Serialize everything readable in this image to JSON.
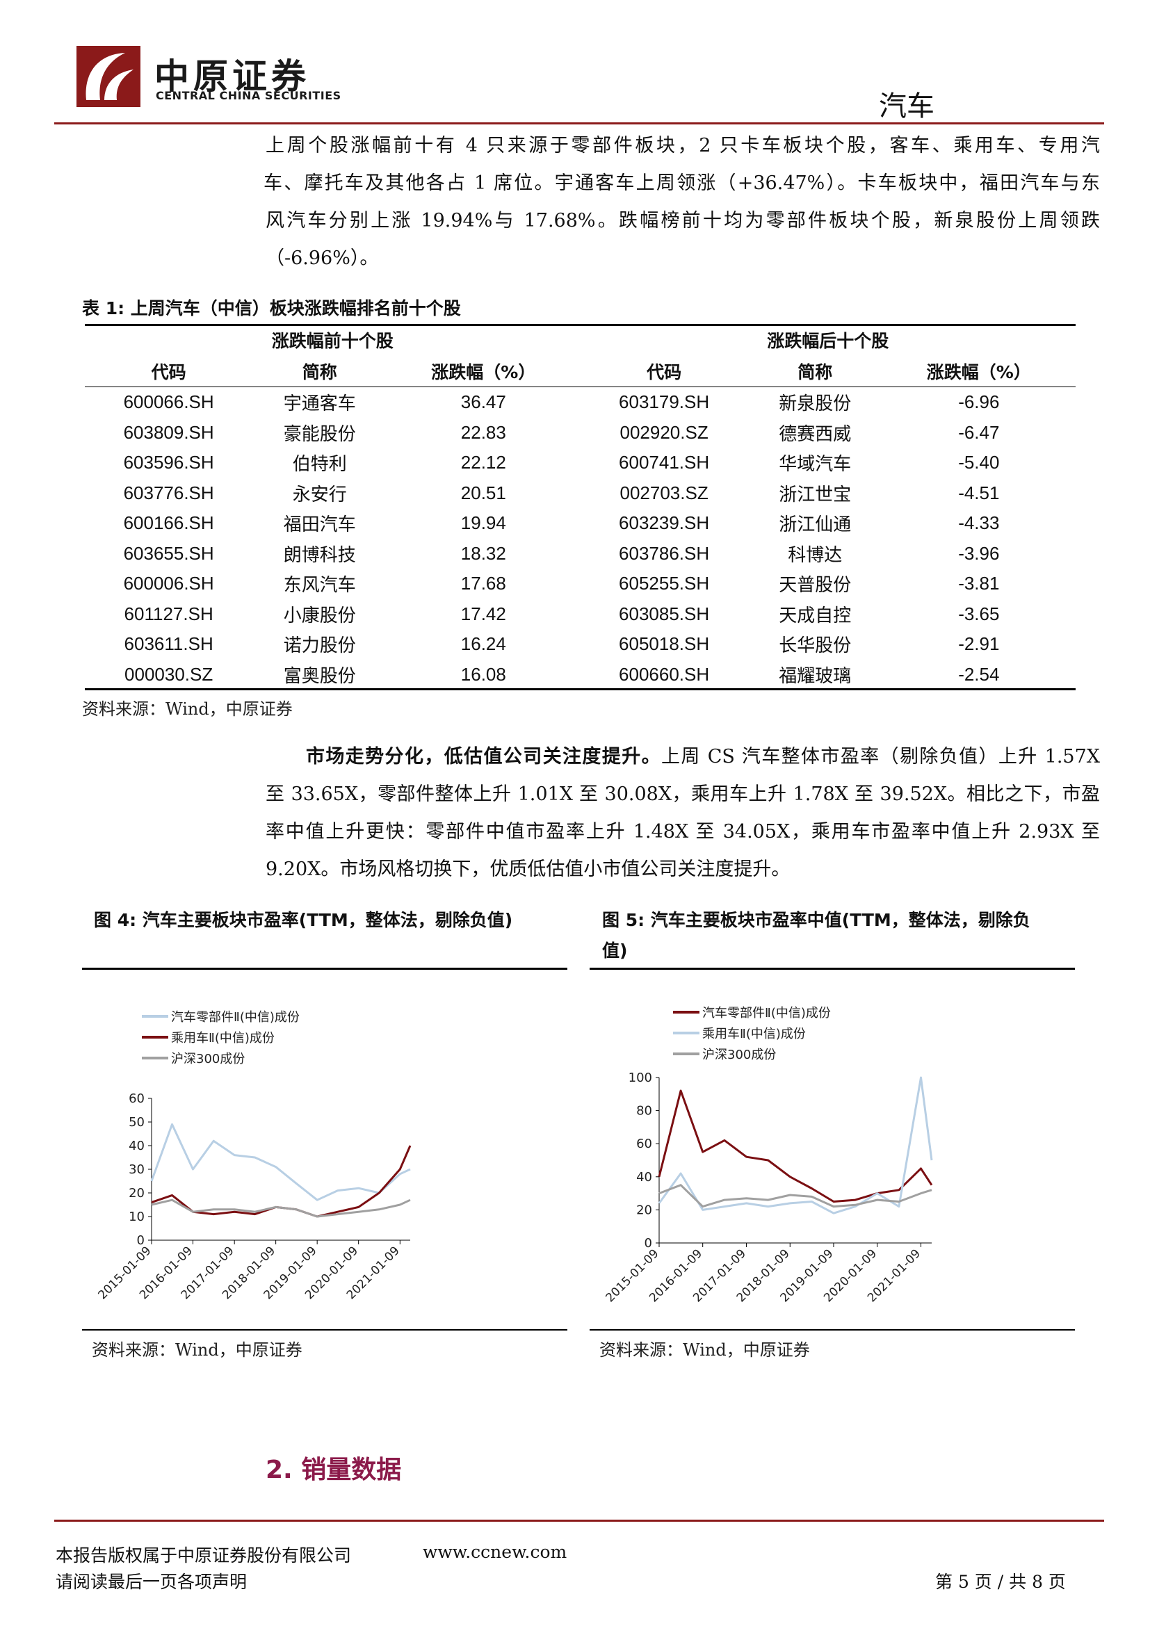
{
  "header": {
    "company_cn": "中原证券",
    "company_en": "CENTRAL CHINA SECURITIES",
    "sector": "汽车",
    "brand_color": "#8b1a1a"
  },
  "intro_paragraph": {
    "lines": [
      "上周个股涨幅前十有 4 只来源于零部件板块，2 只卡车板块个股，客车、乘用车、专用汽",
      "车、摩托车及其他各占 1 席位。宇通客车上周领涨（+36.47%）。卡车板块中，福田汽车与东",
      "风汽车分别上涨 19.94%与 17.68%。跌幅榜前十均为零部件板块个股，新泉股份上周领跌",
      "（-6.96%）。"
    ]
  },
  "table1": {
    "caption": "表 1:  上周汽车（中信）板块涨跌幅排名前十个股",
    "group_top": "涨跌幅前十个股",
    "group_bottom": "涨跌幅后十个股",
    "columns": [
      "代码",
      "简称",
      "涨跌幅（%）",
      "代码",
      "简称",
      "涨跌幅（%）"
    ],
    "rows": [
      [
        "600066.SH",
        "宇通客车",
        "36.47",
        "603179.SH",
        "新泉股份",
        "-6.96"
      ],
      [
        "603809.SH",
        "豪能股份",
        "22.83",
        "002920.SZ",
        "德赛西威",
        "-6.47"
      ],
      [
        "603596.SH",
        "伯特利",
        "22.12",
        "600741.SH",
        "华域汽车",
        "-5.40"
      ],
      [
        "603776.SH",
        "永安行",
        "20.51",
        "002703.SZ",
        "浙江世宝",
        "-4.51"
      ],
      [
        "600166.SH",
        "福田汽车",
        "19.94",
        "603239.SH",
        "浙江仙通",
        "-4.33"
      ],
      [
        "603655.SH",
        "朗博科技",
        "18.32",
        "603786.SH",
        "科博达",
        "-3.96"
      ],
      [
        "600006.SH",
        "东风汽车",
        "17.68",
        "605255.SH",
        "天普股份",
        "-3.81"
      ],
      [
        "601127.SH",
        "小康股份",
        "17.42",
        "603085.SH",
        "天成自控",
        "-3.65"
      ],
      [
        "603611.SH",
        "诺力股份",
        "16.24",
        "605018.SH",
        "长华股份",
        "-2.91"
      ],
      [
        "000030.SZ",
        "富奥股份",
        "16.08",
        "600660.SH",
        "福耀玻璃",
        "-2.54"
      ]
    ],
    "source": "资料来源：Wind，中原证券"
  },
  "market_paragraph": {
    "lead": "市场走势分化，低估值公司关注度提升。",
    "lines": [
      "上周 CS 汽车整体市盈率（剔除负值）上升 1.57X",
      "至 33.65X，零部件整体上升 1.01X 至 30.08X，乘用车上升 1.78X 至 39.52X。相比之下，市盈",
      "率中值上升更快：零部件中值市盈率上升 1.48X 至 34.05X，乘用车市盈率中值上升 2.93X 至",
      "9.20X。市场风格切换下，优质低估值小市值公司关注度提升。"
    ]
  },
  "figure4": {
    "title": "图 4:  汽车主要板块市盈率(TTM，整体法，剔除负值)",
    "source": "资料来源：Wind，中原证券"
  },
  "figure5": {
    "title_line1": "图 5:  汽车主要板块市盈率中值(TTM，整体法，剔除负",
    "title_line2": "值)",
    "source": "资料来源：Wind，中原证券"
  },
  "chart_data": [
    {
      "type": "line",
      "x": [
        "2015-01-09",
        "2015-07-09",
        "2016-01-09",
        "2016-07-09",
        "2017-01-09",
        "2017-07-09",
        "2018-01-09",
        "2018-07-09",
        "2019-01-09",
        "2019-07-09",
        "2020-01-09",
        "2020-07-09",
        "2021-01-09",
        "2021-04-09"
      ],
      "xticks": [
        "2015-01-09",
        "2016-01-09",
        "2017-01-09",
        "2018-01-09",
        "2019-01-09",
        "2020-01-09",
        "2021-01-09"
      ],
      "ylim": [
        0,
        60
      ],
      "yticks": [
        0,
        10,
        20,
        30,
        40,
        50,
        60
      ],
      "legend_position": "top",
      "series": [
        {
          "name": "汽车零部件Ⅱ(中信)成份",
          "color": "#b8cfe4",
          "values": [
            25,
            49,
            30,
            42,
            36,
            35,
            31,
            24,
            17,
            21,
            22,
            20,
            28,
            30
          ]
        },
        {
          "name": "乘用车Ⅱ(中信)成份",
          "color": "#7b0f12",
          "values": [
            16,
            19,
            12,
            11,
            12,
            11,
            14,
            13,
            10,
            12,
            14,
            20,
            30,
            40
          ]
        },
        {
          "name": "沪深300成份",
          "color": "#a0a0a0",
          "values": [
            15,
            17,
            12,
            13,
            13,
            12,
            14,
            13,
            10,
            11,
            12,
            13,
            15,
            17
          ]
        }
      ]
    },
    {
      "type": "line",
      "x": [
        "2015-01-09",
        "2015-07-09",
        "2016-01-09",
        "2016-07-09",
        "2017-01-09",
        "2017-07-09",
        "2018-01-09",
        "2018-07-09",
        "2019-01-09",
        "2019-07-09",
        "2020-01-09",
        "2020-07-09",
        "2021-01-09",
        "2021-04-09"
      ],
      "xticks": [
        "2015-01-09",
        "2016-01-09",
        "2017-01-09",
        "2018-01-09",
        "2019-01-09",
        "2020-01-09",
        "2021-01-09"
      ],
      "ylim": [
        0,
        100
      ],
      "yticks": [
        0,
        20,
        40,
        60,
        80,
        100
      ],
      "legend_position": "top",
      "series": [
        {
          "name": "汽车零部件Ⅱ(中信)成份",
          "color": "#7b0f12",
          "values": [
            40,
            92,
            55,
            62,
            52,
            50,
            40,
            33,
            25,
            26,
            30,
            32,
            45,
            35
          ]
        },
        {
          "name": "乘用车Ⅱ(中信)成份",
          "color": "#b8cfe4",
          "values": [
            24,
            42,
            20,
            22,
            24,
            22,
            24,
            25,
            18,
            22,
            30,
            22,
            100,
            50
          ]
        },
        {
          "name": "沪深300成份",
          "color": "#a0a0a0",
          "values": [
            30,
            35,
            22,
            26,
            27,
            26,
            29,
            28,
            22,
            23,
            26,
            25,
            30,
            32
          ]
        }
      ]
    }
  ],
  "section": {
    "title": "2. 销量数据"
  },
  "footer": {
    "copyright": "本报告版权属于中原证券股份有限公司",
    "website": "www.ccnew.com",
    "disclaimer": "请阅读最后一页各项声明",
    "page": "第 5 页 / 共 8 页"
  }
}
